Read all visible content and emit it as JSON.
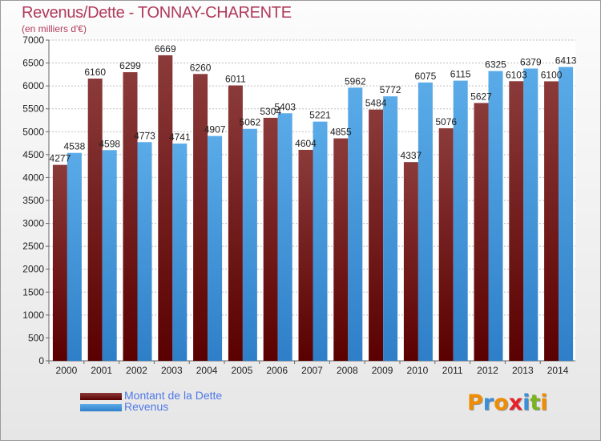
{
  "title": "Revenus/Dette - TONNAY-CHARENTE",
  "subtitle": "(en milliers d'€)",
  "logo": {
    "text": "Proxiti",
    "letter_colors": [
      "#f08c00",
      "#3a8fd8",
      "#f08c00",
      "#e8212a",
      "#3a8fd8",
      "#7ab520",
      "#f08c00"
    ]
  },
  "colors": {
    "dette_top": "#8b3a3a",
    "dette_bottom": "#5a0000",
    "revenus_top": "#5aabe8",
    "revenus_bottom": "#2e7fc8",
    "axis_text": "#222222",
    "grid": "#bdbdbd"
  },
  "chart_data": {
    "type": "bar",
    "categories": [
      "2000",
      "2001",
      "2002",
      "2003",
      "2004",
      "2005",
      "2006",
      "2007",
      "2008",
      "2009",
      "2010",
      "2011",
      "2012",
      "2013",
      "2014"
    ],
    "ylim": [
      0,
      7000
    ],
    "yticks": [
      0,
      500,
      1000,
      1500,
      2000,
      2500,
      3000,
      3500,
      4000,
      4500,
      5000,
      5500,
      6000,
      6500,
      7000
    ],
    "grid": true,
    "legend_position": "bottom-left",
    "series": [
      {
        "name": "Montant de la Dette",
        "values": [
          4277,
          6160,
          6299,
          6669,
          6260,
          6011,
          5304,
          4604,
          4855,
          5484,
          4337,
          5076,
          5627,
          6103,
          6100
        ],
        "labels": [
          "4277",
          "6160",
          "6299",
          "6669",
          "6260",
          "6011",
          "5304",
          "4604",
          "4855",
          "5484",
          "4337",
          "5076",
          "5627",
          "6103",
          "6100"
        ]
      },
      {
        "name": "Revenus",
        "values": [
          4538,
          4598,
          4773,
          4741,
          4907,
          5062,
          5403,
          5221,
          5962,
          5772,
          6075,
          6115,
          6325,
          6379,
          6413
        ],
        "labels": [
          "4538",
          "4598",
          "4773",
          "4741",
          "4907",
          "5062",
          "5403",
          "5221",
          "5962",
          "5772",
          "6075",
          "6115",
          "6325",
          "6379",
          "6413"
        ]
      }
    ]
  }
}
